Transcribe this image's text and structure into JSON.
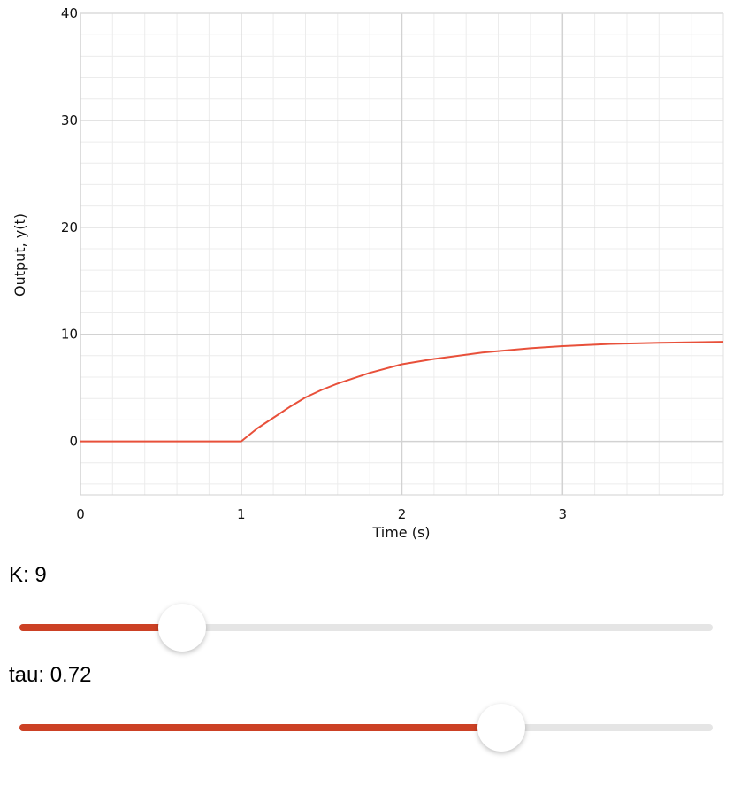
{
  "chart_data": {
    "type": "line",
    "title": "",
    "xlabel": "Time (s)",
    "ylabel": "Output, y(t)",
    "xlim": [
      0,
      4
    ],
    "ylim": [
      -5,
      40
    ],
    "x_ticks": [
      "0",
      "1",
      "2",
      "3"
    ],
    "x_tick_values": [
      0,
      1,
      2,
      3
    ],
    "y_ticks": [
      "0",
      "10",
      "20",
      "30",
      "40"
    ],
    "y_tick_values": [
      0,
      10,
      20,
      30,
      40
    ],
    "grid": true,
    "legend": "none",
    "series": [
      {
        "color": "#e8503a",
        "x": [
          0,
          0.5,
          1,
          1.1,
          1.2,
          1.3,
          1.4,
          1.5,
          1.6,
          1.8,
          2.0,
          2.2,
          2.5,
          2.8,
          3.0,
          3.3,
          3.6,
          4.0
        ],
        "y": [
          0,
          0,
          0,
          1.2,
          2.2,
          3.2,
          4.1,
          4.8,
          5.4,
          6.4,
          7.2,
          7.7,
          8.3,
          8.7,
          8.9,
          9.1,
          9.2,
          9.3
        ]
      }
    ]
  },
  "controls": {
    "k": {
      "label": "K: 9",
      "fraction": 0.235
    },
    "tau": {
      "label": "tau: 0.72",
      "fraction": 0.695
    }
  },
  "colors": {
    "accent": "#cc4125",
    "track": "#e5e5e5",
    "line": "#e8503a"
  }
}
